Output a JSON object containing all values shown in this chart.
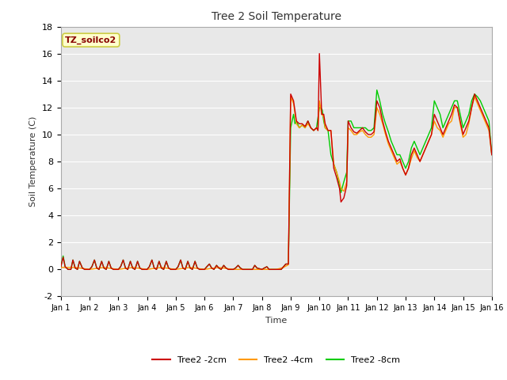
{
  "title": "Tree 2 Soil Temperature",
  "xlabel": "Time",
  "ylabel": "Soil Temperature (C)",
  "ylim": [
    -2,
    18
  ],
  "yticks": [
    -2,
    0,
    2,
    4,
    6,
    8,
    10,
    12,
    14,
    16,
    18
  ],
  "xlim": [
    0,
    15
  ],
  "xtick_labels": [
    "Jan 1",
    "Jan 2",
    "Jan 3",
    "Jan 4",
    "Jan 5",
    "Jan 6",
    "Jan 7",
    "Jan 8",
    "Jan 9",
    "Jan 10",
    "Jan 11",
    "Jan 12",
    "Jan 13",
    "Jan 14",
    "Jan 15",
    "Jan 16"
  ],
  "xtick_positions": [
    0,
    1,
    2,
    3,
    4,
    5,
    6,
    7,
    8,
    9,
    10,
    11,
    12,
    13,
    14,
    15
  ],
  "annotation_text": "TZ_soilco2",
  "annotation_bg": "#ffffcc",
  "annotation_border": "#cccc44",
  "annotation_text_color": "#880000",
  "fig_bg": "#ffffff",
  "plot_bg": "#e8e8e8",
  "grid_color": "#ffffff",
  "line_colors": {
    "2cm": "#cc0000",
    "4cm": "#ff9900",
    "8cm": "#00cc00"
  },
  "legend_labels": [
    "Tree2 -2cm",
    "Tree2 -4cm",
    "Tree2 -8cm"
  ],
  "series_2cm": [
    [
      0.0,
      0.2
    ],
    [
      0.08,
      0.9
    ],
    [
      0.15,
      0.2
    ],
    [
      0.25,
      0.0
    ],
    [
      0.35,
      0.0
    ],
    [
      0.42,
      0.7
    ],
    [
      0.5,
      0.1
    ],
    [
      0.58,
      0.0
    ],
    [
      0.65,
      0.6
    ],
    [
      0.75,
      0.1
    ],
    [
      0.83,
      0.0
    ],
    [
      0.92,
      0.0
    ],
    [
      1.0,
      0.0
    ],
    [
      1.08,
      0.2
    ],
    [
      1.17,
      0.7
    ],
    [
      1.25,
      0.1
    ],
    [
      1.33,
      0.0
    ],
    [
      1.42,
      0.6
    ],
    [
      1.5,
      0.1
    ],
    [
      1.58,
      0.0
    ],
    [
      1.67,
      0.6
    ],
    [
      1.75,
      0.1
    ],
    [
      1.83,
      0.0
    ],
    [
      2.0,
      0.0
    ],
    [
      2.08,
      0.2
    ],
    [
      2.17,
      0.7
    ],
    [
      2.25,
      0.1
    ],
    [
      2.33,
      0.0
    ],
    [
      2.42,
      0.6
    ],
    [
      2.5,
      0.1
    ],
    [
      2.58,
      0.0
    ],
    [
      2.67,
      0.6
    ],
    [
      2.75,
      0.1
    ],
    [
      2.83,
      0.0
    ],
    [
      3.0,
      0.0
    ],
    [
      3.08,
      0.2
    ],
    [
      3.17,
      0.7
    ],
    [
      3.25,
      0.1
    ],
    [
      3.33,
      0.0
    ],
    [
      3.42,
      0.6
    ],
    [
      3.5,
      0.1
    ],
    [
      3.58,
      0.0
    ],
    [
      3.67,
      0.6
    ],
    [
      3.75,
      0.1
    ],
    [
      3.83,
      0.0
    ],
    [
      4.0,
      0.0
    ],
    [
      4.08,
      0.2
    ],
    [
      4.17,
      0.7
    ],
    [
      4.25,
      0.1
    ],
    [
      4.33,
      0.0
    ],
    [
      4.42,
      0.6
    ],
    [
      4.5,
      0.1
    ],
    [
      4.58,
      0.0
    ],
    [
      4.67,
      0.6
    ],
    [
      4.75,
      0.1
    ],
    [
      4.83,
      0.0
    ],
    [
      5.0,
      0.0
    ],
    [
      5.08,
      0.2
    ],
    [
      5.17,
      0.4
    ],
    [
      5.25,
      0.1
    ],
    [
      5.33,
      0.0
    ],
    [
      5.42,
      0.3
    ],
    [
      5.5,
      0.1
    ],
    [
      5.58,
      0.0
    ],
    [
      5.67,
      0.3
    ],
    [
      5.75,
      0.1
    ],
    [
      5.83,
      0.0
    ],
    [
      6.0,
      0.0
    ],
    [
      6.08,
      0.1
    ],
    [
      6.17,
      0.3
    ],
    [
      6.25,
      0.1
    ],
    [
      6.33,
      0.0
    ],
    [
      6.5,
      0.0
    ],
    [
      6.67,
      0.0
    ],
    [
      6.75,
      0.3
    ],
    [
      6.83,
      0.1
    ],
    [
      7.0,
      0.0
    ],
    [
      7.08,
      0.1
    ],
    [
      7.17,
      0.2
    ],
    [
      7.25,
      0.0
    ],
    [
      7.5,
      0.0
    ],
    [
      7.67,
      0.0
    ],
    [
      7.75,
      0.2
    ],
    [
      7.83,
      0.4
    ],
    [
      7.92,
      0.4
    ],
    [
      8.0,
      13.0
    ],
    [
      8.1,
      12.5
    ],
    [
      8.2,
      11.0
    ],
    [
      8.3,
      10.8
    ],
    [
      8.4,
      10.8
    ],
    [
      8.5,
      10.6
    ],
    [
      8.6,
      11.0
    ],
    [
      8.7,
      10.5
    ],
    [
      8.8,
      10.3
    ],
    [
      8.9,
      10.5
    ],
    [
      8.95,
      10.3
    ],
    [
      9.0,
      16.0
    ],
    [
      9.08,
      11.5
    ],
    [
      9.15,
      11.5
    ],
    [
      9.2,
      10.8
    ],
    [
      9.3,
      10.3
    ],
    [
      9.4,
      10.3
    ],
    [
      9.5,
      7.5
    ],
    [
      9.6,
      6.8
    ],
    [
      9.7,
      6.0
    ],
    [
      9.75,
      5.0
    ],
    [
      9.85,
      5.3
    ],
    [
      9.95,
      6.2
    ],
    [
      10.0,
      11.0
    ],
    [
      10.1,
      10.5
    ],
    [
      10.2,
      10.2
    ],
    [
      10.3,
      10.1
    ],
    [
      10.4,
      10.3
    ],
    [
      10.5,
      10.5
    ],
    [
      10.6,
      10.2
    ],
    [
      10.7,
      10.0
    ],
    [
      10.8,
      10.0
    ],
    [
      10.9,
      10.2
    ],
    [
      11.0,
      12.5
    ],
    [
      11.1,
      12.0
    ],
    [
      11.2,
      11.0
    ],
    [
      11.3,
      10.2
    ],
    [
      11.4,
      9.5
    ],
    [
      11.5,
      9.0
    ],
    [
      11.6,
      8.5
    ],
    [
      11.7,
      8.0
    ],
    [
      11.8,
      8.2
    ],
    [
      11.9,
      7.5
    ],
    [
      12.0,
      7.0
    ],
    [
      12.1,
      7.5
    ],
    [
      12.2,
      8.5
    ],
    [
      12.3,
      9.0
    ],
    [
      12.4,
      8.5
    ],
    [
      12.5,
      8.0
    ],
    [
      12.6,
      8.5
    ],
    [
      12.7,
      9.0
    ],
    [
      12.8,
      9.5
    ],
    [
      12.9,
      10.0
    ],
    [
      13.0,
      11.5
    ],
    [
      13.1,
      11.0
    ],
    [
      13.2,
      10.5
    ],
    [
      13.3,
      10.0
    ],
    [
      13.4,
      10.5
    ],
    [
      13.5,
      11.0
    ],
    [
      13.6,
      11.5
    ],
    [
      13.7,
      12.2
    ],
    [
      13.8,
      12.0
    ],
    [
      13.9,
      11.0
    ],
    [
      14.0,
      10.0
    ],
    [
      14.1,
      10.5
    ],
    [
      14.2,
      11.0
    ],
    [
      14.3,
      12.0
    ],
    [
      14.4,
      13.0
    ],
    [
      14.5,
      12.5
    ],
    [
      14.6,
      12.0
    ],
    [
      14.7,
      11.5
    ],
    [
      14.8,
      11.0
    ],
    [
      14.9,
      10.5
    ],
    [
      15.0,
      8.5
    ]
  ],
  "series_4cm": [
    [
      0.0,
      0.15
    ],
    [
      0.5,
      0.15
    ],
    [
      1.0,
      0.0
    ],
    [
      1.5,
      0.15
    ],
    [
      2.0,
      0.0
    ],
    [
      2.5,
      0.15
    ],
    [
      3.0,
      0.0
    ],
    [
      3.5,
      0.15
    ],
    [
      4.0,
      0.0
    ],
    [
      4.5,
      0.15
    ],
    [
      5.0,
      0.0
    ],
    [
      5.5,
      0.15
    ],
    [
      6.0,
      0.0
    ],
    [
      6.5,
      0.0
    ],
    [
      7.0,
      0.0
    ],
    [
      7.5,
      0.0
    ],
    [
      7.75,
      0.15
    ],
    [
      7.92,
      0.35
    ],
    [
      8.0,
      12.8
    ],
    [
      8.1,
      12.3
    ],
    [
      8.2,
      10.8
    ],
    [
      8.3,
      10.5
    ],
    [
      8.4,
      10.7
    ],
    [
      8.5,
      10.5
    ],
    [
      8.6,
      10.8
    ],
    [
      8.7,
      10.5
    ],
    [
      8.8,
      10.3
    ],
    [
      8.9,
      10.5
    ],
    [
      8.95,
      10.3
    ],
    [
      9.0,
      12.5
    ],
    [
      9.08,
      11.5
    ],
    [
      9.15,
      11.3
    ],
    [
      9.2,
      10.5
    ],
    [
      9.3,
      10.3
    ],
    [
      9.4,
      10.3
    ],
    [
      9.5,
      7.8
    ],
    [
      9.6,
      7.2
    ],
    [
      9.7,
      6.5
    ],
    [
      9.75,
      6.0
    ],
    [
      9.85,
      5.8
    ],
    [
      9.95,
      6.5
    ],
    [
      10.0,
      10.5
    ],
    [
      10.1,
      10.3
    ],
    [
      10.2,
      10.0
    ],
    [
      10.3,
      10.0
    ],
    [
      10.4,
      10.2
    ],
    [
      10.5,
      10.3
    ],
    [
      10.6,
      10.0
    ],
    [
      10.7,
      9.8
    ],
    [
      10.8,
      9.8
    ],
    [
      10.9,
      10.0
    ],
    [
      11.0,
      12.0
    ],
    [
      11.1,
      11.5
    ],
    [
      11.2,
      10.8
    ],
    [
      11.3,
      10.0
    ],
    [
      11.4,
      9.3
    ],
    [
      11.5,
      8.8
    ],
    [
      11.6,
      8.3
    ],
    [
      11.7,
      7.8
    ],
    [
      11.8,
      8.0
    ],
    [
      11.9,
      7.5
    ],
    [
      12.0,
      7.0
    ],
    [
      12.1,
      7.5
    ],
    [
      12.2,
      8.2
    ],
    [
      12.3,
      8.8
    ],
    [
      12.4,
      8.3
    ],
    [
      12.5,
      8.0
    ],
    [
      12.6,
      8.5
    ],
    [
      12.7,
      9.0
    ],
    [
      12.8,
      9.5
    ],
    [
      12.9,
      10.0
    ],
    [
      13.0,
      11.0
    ],
    [
      13.1,
      10.5
    ],
    [
      13.2,
      10.3
    ],
    [
      13.3,
      9.8
    ],
    [
      13.4,
      10.3
    ],
    [
      13.5,
      10.8
    ],
    [
      13.6,
      11.0
    ],
    [
      13.7,
      12.0
    ],
    [
      13.8,
      12.0
    ],
    [
      13.9,
      10.8
    ],
    [
      14.0,
      9.8
    ],
    [
      14.1,
      10.0
    ],
    [
      14.2,
      10.8
    ],
    [
      14.3,
      12.0
    ],
    [
      14.4,
      12.8
    ],
    [
      14.5,
      12.3
    ],
    [
      14.6,
      11.8
    ],
    [
      14.7,
      11.3
    ],
    [
      14.8,
      10.8
    ],
    [
      14.9,
      10.3
    ],
    [
      15.0,
      8.5
    ]
  ],
  "series_8cm": [
    [
      0.0,
      0.2
    ],
    [
      0.08,
      1.0
    ],
    [
      0.15,
      0.2
    ],
    [
      0.25,
      0.0
    ],
    [
      0.35,
      0.0
    ],
    [
      0.42,
      0.7
    ],
    [
      0.5,
      0.1
    ],
    [
      0.58,
      0.0
    ],
    [
      0.65,
      0.6
    ],
    [
      0.75,
      0.1
    ],
    [
      0.83,
      0.0
    ],
    [
      0.92,
      0.0
    ],
    [
      1.0,
      0.0
    ],
    [
      1.08,
      0.2
    ],
    [
      1.17,
      0.7
    ],
    [
      1.25,
      0.1
    ],
    [
      1.33,
      0.0
    ],
    [
      1.42,
      0.6
    ],
    [
      1.5,
      0.1
    ],
    [
      1.58,
      0.0
    ],
    [
      1.67,
      0.6
    ],
    [
      1.75,
      0.1
    ],
    [
      1.83,
      0.0
    ],
    [
      2.0,
      0.0
    ],
    [
      2.08,
      0.2
    ],
    [
      2.17,
      0.7
    ],
    [
      2.25,
      0.1
    ],
    [
      2.33,
      0.0
    ],
    [
      2.42,
      0.6
    ],
    [
      2.5,
      0.1
    ],
    [
      2.58,
      0.0
    ],
    [
      2.67,
      0.6
    ],
    [
      2.75,
      0.1
    ],
    [
      2.83,
      0.0
    ],
    [
      3.0,
      0.0
    ],
    [
      3.08,
      0.2
    ],
    [
      3.17,
      0.7
    ],
    [
      3.25,
      0.1
    ],
    [
      3.33,
      0.0
    ],
    [
      3.42,
      0.6
    ],
    [
      3.5,
      0.1
    ],
    [
      3.58,
      0.0
    ],
    [
      3.67,
      0.6
    ],
    [
      3.75,
      0.1
    ],
    [
      3.83,
      0.0
    ],
    [
      4.0,
      0.0
    ],
    [
      4.08,
      0.2
    ],
    [
      4.17,
      0.7
    ],
    [
      4.25,
      0.1
    ],
    [
      4.33,
      0.0
    ],
    [
      4.42,
      0.6
    ],
    [
      4.5,
      0.1
    ],
    [
      4.58,
      0.0
    ],
    [
      4.67,
      0.6
    ],
    [
      4.75,
      0.1
    ],
    [
      4.83,
      0.0
    ],
    [
      5.0,
      0.0
    ],
    [
      5.08,
      0.2
    ],
    [
      5.17,
      0.4
    ],
    [
      5.25,
      0.1
    ],
    [
      5.33,
      0.0
    ],
    [
      5.42,
      0.3
    ],
    [
      5.5,
      0.1
    ],
    [
      5.58,
      0.0
    ],
    [
      5.67,
      0.3
    ],
    [
      5.75,
      0.1
    ],
    [
      5.83,
      0.0
    ],
    [
      6.0,
      0.0
    ],
    [
      6.08,
      0.1
    ],
    [
      6.17,
      0.3
    ],
    [
      6.25,
      0.1
    ],
    [
      6.33,
      0.0
    ],
    [
      6.5,
      0.0
    ],
    [
      6.67,
      0.0
    ],
    [
      6.75,
      0.3
    ],
    [
      6.83,
      0.1
    ],
    [
      7.0,
      0.0
    ],
    [
      7.08,
      0.1
    ],
    [
      7.17,
      0.2
    ],
    [
      7.25,
      0.0
    ],
    [
      7.5,
      0.0
    ],
    [
      7.67,
      0.0
    ],
    [
      7.75,
      0.2
    ],
    [
      7.83,
      0.4
    ],
    [
      7.92,
      0.4
    ],
    [
      8.0,
      10.5
    ],
    [
      8.05,
      11.0
    ],
    [
      8.1,
      11.5
    ],
    [
      8.15,
      10.8
    ],
    [
      8.2,
      11.0
    ],
    [
      8.3,
      10.5
    ],
    [
      8.4,
      10.7
    ],
    [
      8.5,
      10.5
    ],
    [
      8.6,
      11.0
    ],
    [
      8.7,
      10.5
    ],
    [
      8.8,
      10.3
    ],
    [
      8.9,
      10.5
    ],
    [
      9.0,
      12.0
    ],
    [
      9.05,
      12.0
    ],
    [
      9.1,
      11.8
    ],
    [
      9.15,
      11.0
    ],
    [
      9.2,
      10.5
    ],
    [
      9.3,
      10.3
    ],
    [
      9.4,
      8.5
    ],
    [
      9.5,
      7.8
    ],
    [
      9.6,
      7.2
    ],
    [
      9.7,
      6.2
    ],
    [
      9.75,
      5.7
    ],
    [
      9.85,
      6.5
    ],
    [
      9.95,
      7.2
    ],
    [
      10.0,
      11.0
    ],
    [
      10.1,
      11.0
    ],
    [
      10.2,
      10.5
    ],
    [
      10.3,
      10.5
    ],
    [
      10.4,
      10.5
    ],
    [
      10.5,
      10.5
    ],
    [
      10.6,
      10.5
    ],
    [
      10.7,
      10.3
    ],
    [
      10.8,
      10.3
    ],
    [
      10.9,
      10.5
    ],
    [
      11.0,
      13.3
    ],
    [
      11.1,
      12.5
    ],
    [
      11.2,
      11.5
    ],
    [
      11.3,
      10.8
    ],
    [
      11.4,
      10.2
    ],
    [
      11.5,
      9.5
    ],
    [
      11.6,
      9.0
    ],
    [
      11.7,
      8.5
    ],
    [
      11.8,
      8.5
    ],
    [
      11.9,
      8.0
    ],
    [
      12.0,
      7.5
    ],
    [
      12.1,
      8.0
    ],
    [
      12.2,
      9.0
    ],
    [
      12.3,
      9.5
    ],
    [
      12.4,
      9.0
    ],
    [
      12.5,
      8.5
    ],
    [
      12.6,
      9.0
    ],
    [
      12.7,
      9.5
    ],
    [
      12.8,
      10.0
    ],
    [
      12.9,
      10.5
    ],
    [
      13.0,
      12.5
    ],
    [
      13.1,
      12.0
    ],
    [
      13.2,
      11.5
    ],
    [
      13.3,
      10.5
    ],
    [
      13.4,
      11.0
    ],
    [
      13.5,
      11.5
    ],
    [
      13.6,
      12.0
    ],
    [
      13.7,
      12.5
    ],
    [
      13.8,
      12.5
    ],
    [
      13.9,
      11.5
    ],
    [
      14.0,
      10.5
    ],
    [
      14.1,
      11.0
    ],
    [
      14.2,
      11.5
    ],
    [
      14.3,
      12.5
    ],
    [
      14.4,
      13.0
    ],
    [
      14.5,
      12.8
    ],
    [
      14.6,
      12.5
    ],
    [
      14.7,
      12.0
    ],
    [
      14.8,
      11.5
    ],
    [
      14.9,
      11.0
    ],
    [
      15.0,
      8.5
    ]
  ]
}
